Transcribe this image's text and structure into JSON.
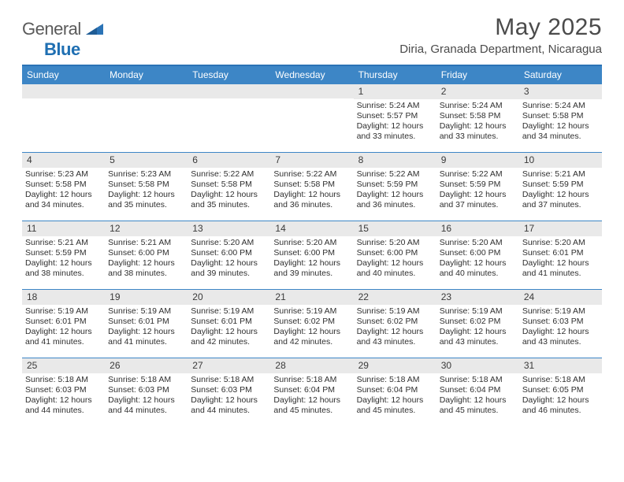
{
  "brand": {
    "part1": "General",
    "part2": "Blue"
  },
  "title": "May 2025",
  "subtitle": "Diria, Granada Department, Nicaragua",
  "colors": {
    "header_bg": "#3d86c6",
    "border": "#2b73b6",
    "daynum_bg": "#e9e9e9",
    "text": "#2f2f2f",
    "title": "#4b4b4b"
  },
  "typography": {
    "title_fontsize": 30,
    "subtitle_fontsize": 15,
    "dayhead_fontsize": 12,
    "cell_fontsize": 10.5
  },
  "dayheads": [
    "Sunday",
    "Monday",
    "Tuesday",
    "Wednesday",
    "Thursday",
    "Friday",
    "Saturday"
  ],
  "weeks": [
    [
      null,
      null,
      null,
      null,
      {
        "n": "1",
        "sr": "Sunrise: 5:24 AM",
        "ss": "Sunset: 5:57 PM",
        "dl": "Daylight: 12 hours and 33 minutes."
      },
      {
        "n": "2",
        "sr": "Sunrise: 5:24 AM",
        "ss": "Sunset: 5:58 PM",
        "dl": "Daylight: 12 hours and 33 minutes."
      },
      {
        "n": "3",
        "sr": "Sunrise: 5:24 AM",
        "ss": "Sunset: 5:58 PM",
        "dl": "Daylight: 12 hours and 34 minutes."
      }
    ],
    [
      {
        "n": "4",
        "sr": "Sunrise: 5:23 AM",
        "ss": "Sunset: 5:58 PM",
        "dl": "Daylight: 12 hours and 34 minutes."
      },
      {
        "n": "5",
        "sr": "Sunrise: 5:23 AM",
        "ss": "Sunset: 5:58 PM",
        "dl": "Daylight: 12 hours and 35 minutes."
      },
      {
        "n": "6",
        "sr": "Sunrise: 5:22 AM",
        "ss": "Sunset: 5:58 PM",
        "dl": "Daylight: 12 hours and 35 minutes."
      },
      {
        "n": "7",
        "sr": "Sunrise: 5:22 AM",
        "ss": "Sunset: 5:58 PM",
        "dl": "Daylight: 12 hours and 36 minutes."
      },
      {
        "n": "8",
        "sr": "Sunrise: 5:22 AM",
        "ss": "Sunset: 5:59 PM",
        "dl": "Daylight: 12 hours and 36 minutes."
      },
      {
        "n": "9",
        "sr": "Sunrise: 5:22 AM",
        "ss": "Sunset: 5:59 PM",
        "dl": "Daylight: 12 hours and 37 minutes."
      },
      {
        "n": "10",
        "sr": "Sunrise: 5:21 AM",
        "ss": "Sunset: 5:59 PM",
        "dl": "Daylight: 12 hours and 37 minutes."
      }
    ],
    [
      {
        "n": "11",
        "sr": "Sunrise: 5:21 AM",
        "ss": "Sunset: 5:59 PM",
        "dl": "Daylight: 12 hours and 38 minutes."
      },
      {
        "n": "12",
        "sr": "Sunrise: 5:21 AM",
        "ss": "Sunset: 6:00 PM",
        "dl": "Daylight: 12 hours and 38 minutes."
      },
      {
        "n": "13",
        "sr": "Sunrise: 5:20 AM",
        "ss": "Sunset: 6:00 PM",
        "dl": "Daylight: 12 hours and 39 minutes."
      },
      {
        "n": "14",
        "sr": "Sunrise: 5:20 AM",
        "ss": "Sunset: 6:00 PM",
        "dl": "Daylight: 12 hours and 39 minutes."
      },
      {
        "n": "15",
        "sr": "Sunrise: 5:20 AM",
        "ss": "Sunset: 6:00 PM",
        "dl": "Daylight: 12 hours and 40 minutes."
      },
      {
        "n": "16",
        "sr": "Sunrise: 5:20 AM",
        "ss": "Sunset: 6:00 PM",
        "dl": "Daylight: 12 hours and 40 minutes."
      },
      {
        "n": "17",
        "sr": "Sunrise: 5:20 AM",
        "ss": "Sunset: 6:01 PM",
        "dl": "Daylight: 12 hours and 41 minutes."
      }
    ],
    [
      {
        "n": "18",
        "sr": "Sunrise: 5:19 AM",
        "ss": "Sunset: 6:01 PM",
        "dl": "Daylight: 12 hours and 41 minutes."
      },
      {
        "n": "19",
        "sr": "Sunrise: 5:19 AM",
        "ss": "Sunset: 6:01 PM",
        "dl": "Daylight: 12 hours and 41 minutes."
      },
      {
        "n": "20",
        "sr": "Sunrise: 5:19 AM",
        "ss": "Sunset: 6:01 PM",
        "dl": "Daylight: 12 hours and 42 minutes."
      },
      {
        "n": "21",
        "sr": "Sunrise: 5:19 AM",
        "ss": "Sunset: 6:02 PM",
        "dl": "Daylight: 12 hours and 42 minutes."
      },
      {
        "n": "22",
        "sr": "Sunrise: 5:19 AM",
        "ss": "Sunset: 6:02 PM",
        "dl": "Daylight: 12 hours and 43 minutes."
      },
      {
        "n": "23",
        "sr": "Sunrise: 5:19 AM",
        "ss": "Sunset: 6:02 PM",
        "dl": "Daylight: 12 hours and 43 minutes."
      },
      {
        "n": "24",
        "sr": "Sunrise: 5:19 AM",
        "ss": "Sunset: 6:03 PM",
        "dl": "Daylight: 12 hours and 43 minutes."
      }
    ],
    [
      {
        "n": "25",
        "sr": "Sunrise: 5:18 AM",
        "ss": "Sunset: 6:03 PM",
        "dl": "Daylight: 12 hours and 44 minutes."
      },
      {
        "n": "26",
        "sr": "Sunrise: 5:18 AM",
        "ss": "Sunset: 6:03 PM",
        "dl": "Daylight: 12 hours and 44 minutes."
      },
      {
        "n": "27",
        "sr": "Sunrise: 5:18 AM",
        "ss": "Sunset: 6:03 PM",
        "dl": "Daylight: 12 hours and 44 minutes."
      },
      {
        "n": "28",
        "sr": "Sunrise: 5:18 AM",
        "ss": "Sunset: 6:04 PM",
        "dl": "Daylight: 12 hours and 45 minutes."
      },
      {
        "n": "29",
        "sr": "Sunrise: 5:18 AM",
        "ss": "Sunset: 6:04 PM",
        "dl": "Daylight: 12 hours and 45 minutes."
      },
      {
        "n": "30",
        "sr": "Sunrise: 5:18 AM",
        "ss": "Sunset: 6:04 PM",
        "dl": "Daylight: 12 hours and 45 minutes."
      },
      {
        "n": "31",
        "sr": "Sunrise: 5:18 AM",
        "ss": "Sunset: 6:05 PM",
        "dl": "Daylight: 12 hours and 46 minutes."
      }
    ]
  ]
}
